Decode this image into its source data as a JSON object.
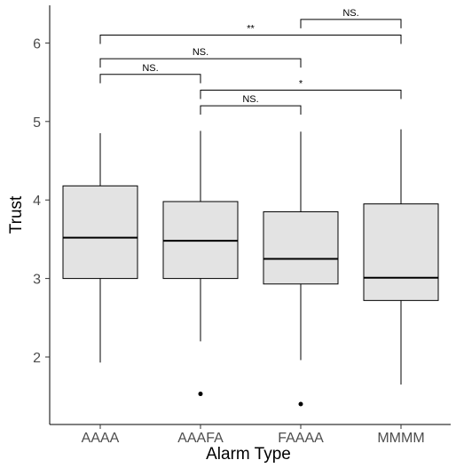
{
  "chart_data": {
    "type": "boxplot",
    "xlabel": "Alarm Type",
    "ylabel": "Trust",
    "categories": [
      "AAAA",
      "AAAFA",
      "FAAAA",
      "MMMM"
    ],
    "y_ticks": [
      2,
      3,
      4,
      5,
      6
    ],
    "ylim": [
      1.25,
      6.5
    ],
    "grid": false,
    "legend": "none",
    "colors": {
      "box_fill": "#e3e3e3",
      "line": "#000000",
      "axis_text": "#4d4d4d"
    },
    "boxes": [
      {
        "category": "AAAA",
        "whisker_low": 1.93,
        "q1": 3.0,
        "median": 3.52,
        "q3": 4.18,
        "whisker_high": 4.85,
        "outliers": []
      },
      {
        "category": "AAAFA",
        "whisker_low": 2.2,
        "q1": 3.0,
        "median": 3.48,
        "q3": 3.98,
        "whisker_high": 4.88,
        "outliers": [
          1.53
        ]
      },
      {
        "category": "FAAAA",
        "whisker_low": 1.96,
        "q1": 2.93,
        "median": 3.25,
        "q3": 3.85,
        "whisker_high": 4.87,
        "outliers": [
          1.4
        ]
      },
      {
        "category": "MMMM",
        "whisker_low": 1.65,
        "q1": 2.72,
        "median": 3.01,
        "q3": 3.95,
        "whisker_high": 4.9,
        "outliers": []
      }
    ],
    "significance": [
      {
        "from": "AAAA",
        "to": "AAAFA",
        "y": 5.6,
        "label": "NS."
      },
      {
        "from": "AAAA",
        "to": "FAAAA",
        "y": 5.8,
        "label": "NS."
      },
      {
        "from": "AAAA",
        "to": "MMMM",
        "y": 6.1,
        "label": "**"
      },
      {
        "from": "FAAAA",
        "to": "MMMM",
        "y": 6.3,
        "label": "NS."
      },
      {
        "from": "AAAFA",
        "to": "FAAAA",
        "y": 5.2,
        "label": "NS."
      },
      {
        "from": "AAAFA",
        "to": "MMMM",
        "y": 5.4,
        "label": "*"
      }
    ]
  }
}
